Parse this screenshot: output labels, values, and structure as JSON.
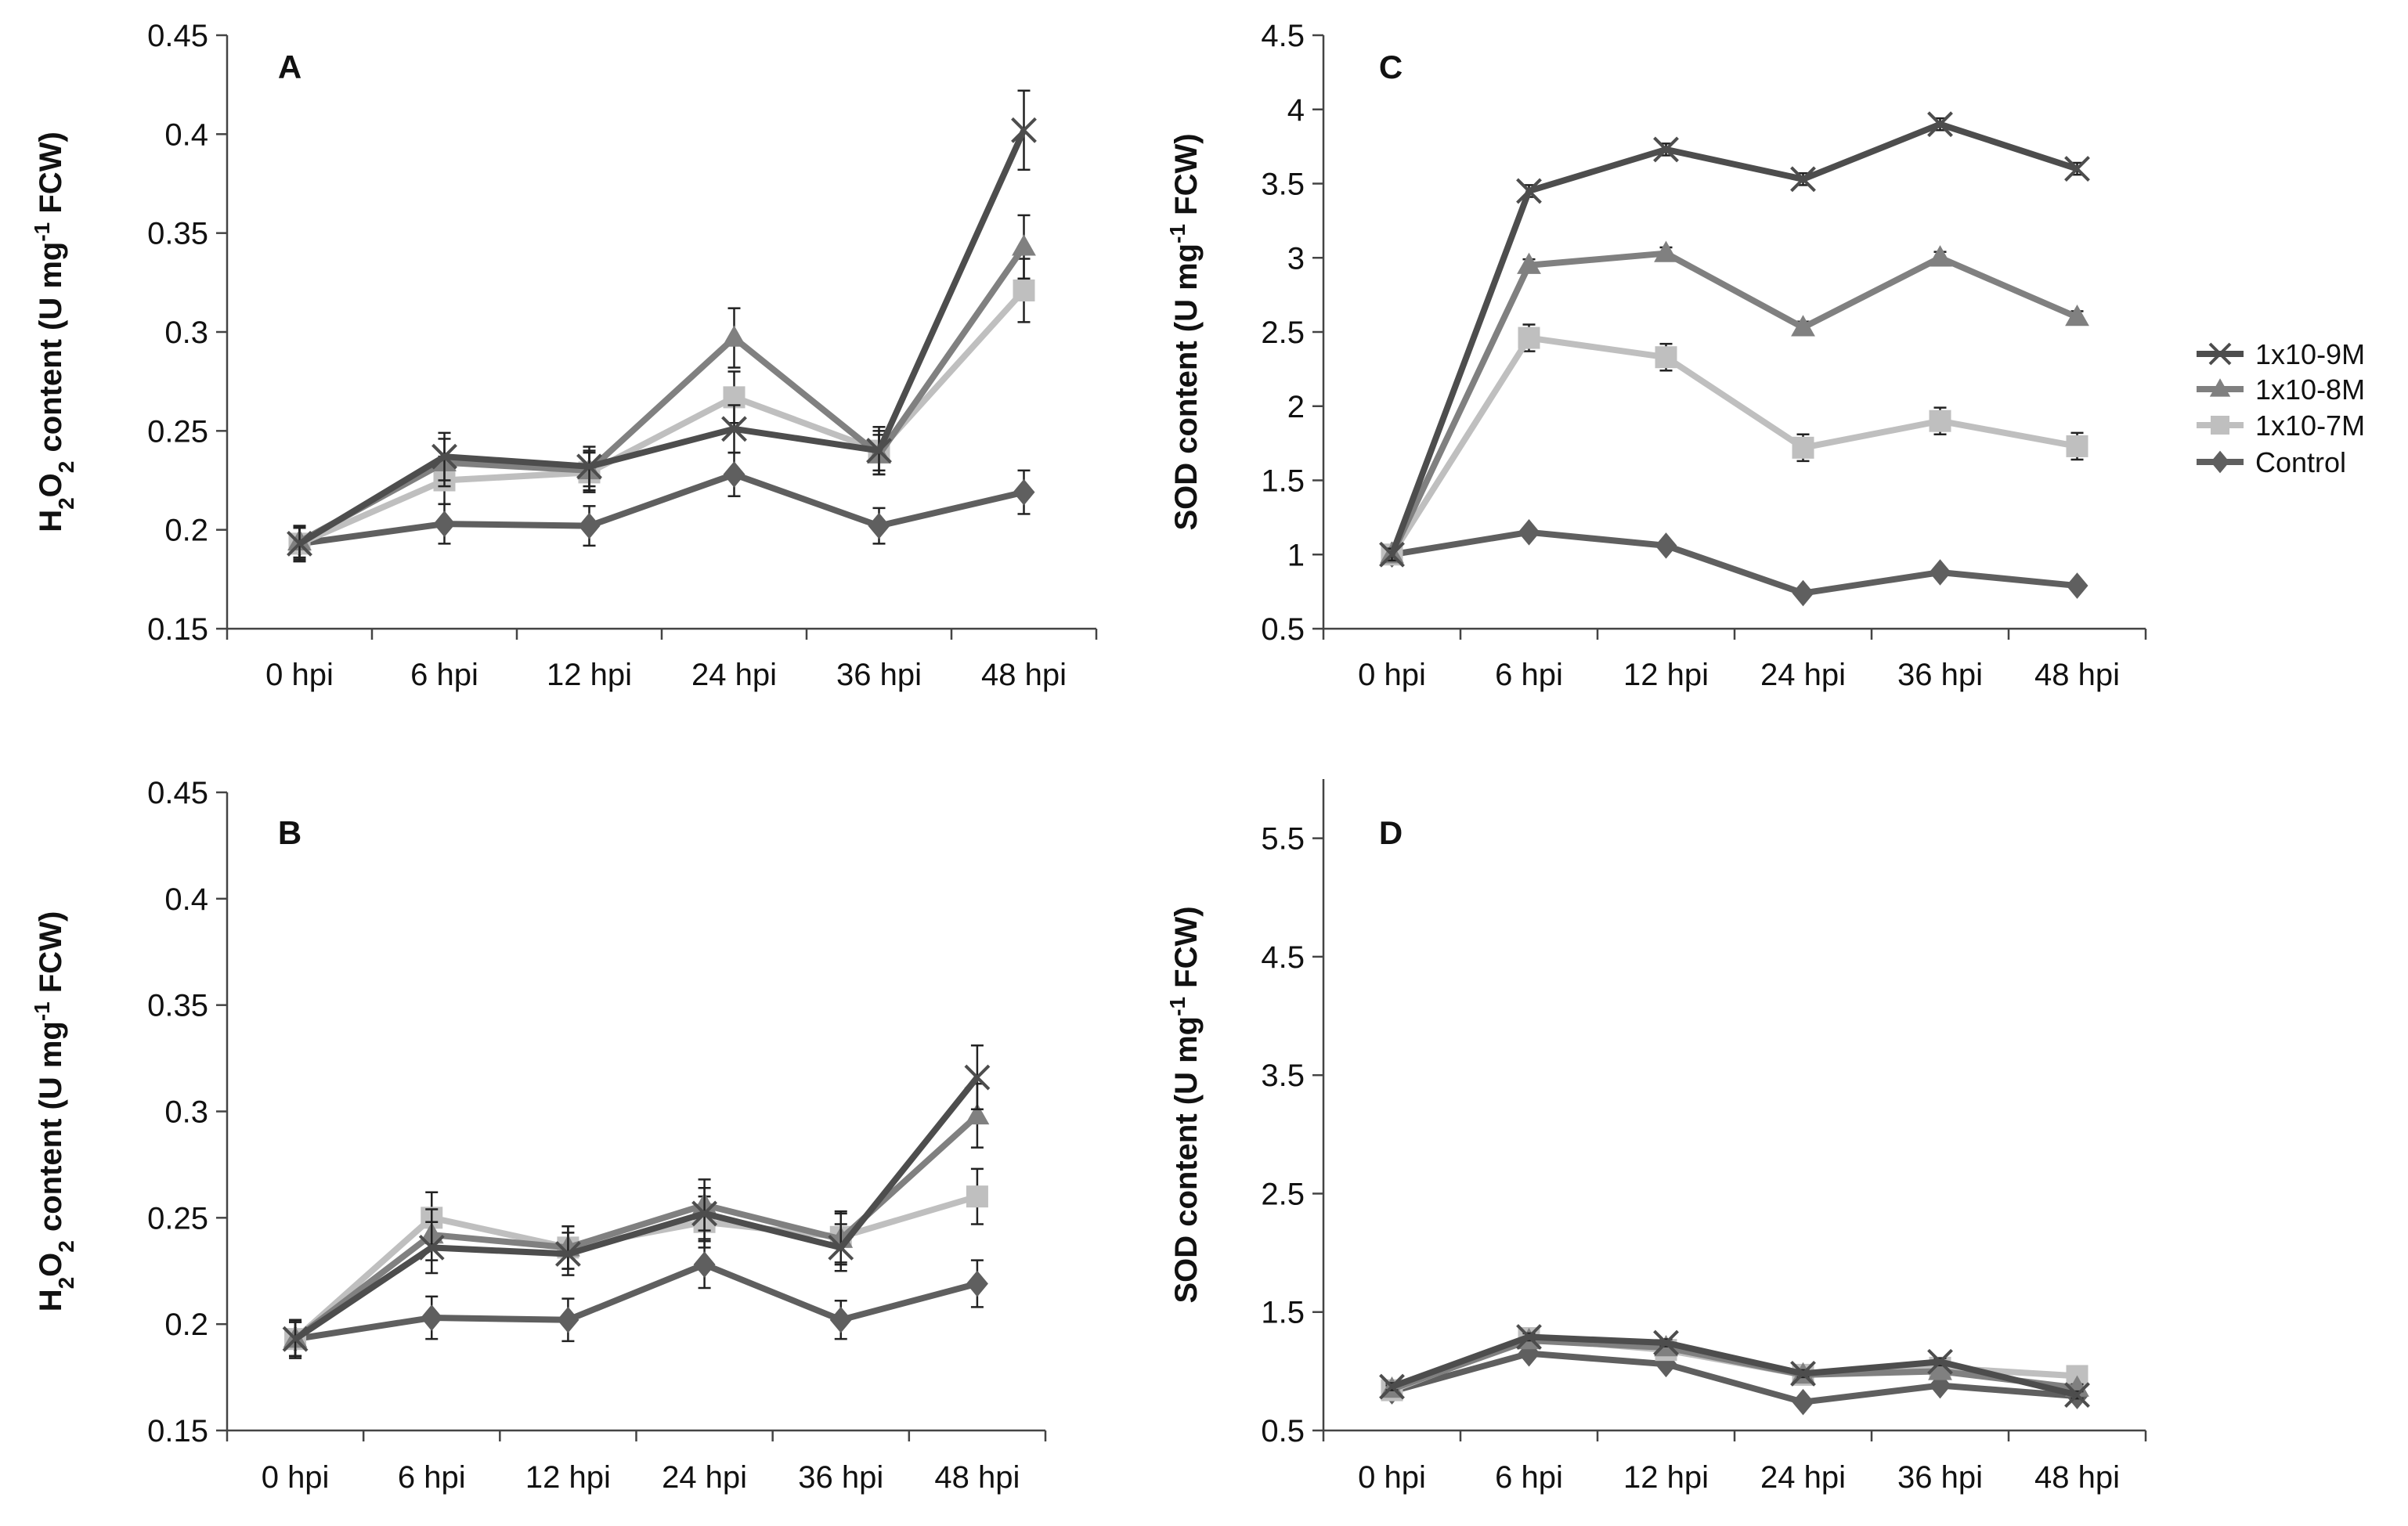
{
  "legend": {
    "items": [
      {
        "name": "1x10-9M",
        "marker": "x",
        "color": "#4d4d4d"
      },
      {
        "name": "1x10-8M",
        "marker": "triangle",
        "color": "#808080"
      },
      {
        "name": "1x10-7M",
        "marker": "square",
        "color": "#bfbfbf"
      },
      {
        "name": "Control",
        "marker": "diamond",
        "color": "#5f5f5f"
      }
    ]
  },
  "chart_data": [
    {
      "panel": "A",
      "type": "line",
      "ylabel": {
        "main": "H",
        "sub1": "2",
        "mid": "O",
        "sub2": "2",
        "rest": " content (U mg",
        "sup": "-1",
        "end": " FCW)"
      },
      "ylim": [
        0.15,
        0.45
      ],
      "yticks": [
        0.15,
        0.2,
        0.25,
        0.3,
        0.35,
        0.4,
        0.45
      ],
      "ytick_labels": [
        "0.15",
        "0.2",
        "0.25",
        "0.3",
        "0.35",
        "0.4",
        "0.45"
      ],
      "categories": [
        "0 hpi",
        "6 hpi",
        "12 hpi",
        "24 hpi",
        "36 hpi",
        "48 hpi"
      ],
      "series": [
        {
          "name": "1x10-9M",
          "values": [
            0.193,
            0.237,
            0.232,
            0.251,
            0.24,
            0.402
          ],
          "errors": [
            0.008,
            0.012,
            0.01,
            0.012,
            0.012,
            0.02
          ]
        },
        {
          "name": "1x10-8M",
          "values": [
            0.194,
            0.234,
            0.23,
            0.297,
            0.238,
            0.343
          ],
          "errors": [
            0.008,
            0.012,
            0.01,
            0.015,
            0.01,
            0.016
          ]
        },
        {
          "name": "1x10-7M",
          "values": [
            0.193,
            0.225,
            0.229,
            0.267,
            0.24,
            0.321
          ],
          "errors": [
            0.008,
            0.012,
            0.01,
            0.013,
            0.01,
            0.016
          ]
        },
        {
          "name": "Control",
          "values": [
            0.193,
            0.203,
            0.202,
            0.228,
            0.202,
            0.219
          ],
          "errors": [
            0.009,
            0.01,
            0.01,
            0.011,
            0.009,
            0.011
          ]
        }
      ]
    },
    {
      "panel": "B",
      "type": "line",
      "ylabel": {
        "main": "H",
        "sub1": "2",
        "mid": "O",
        "sub2": "2",
        "rest": " content (U mg",
        "sup": "-1",
        "end": " FCW)"
      },
      "ylim": [
        0.15,
        0.45
      ],
      "yticks": [
        0.15,
        0.2,
        0.25,
        0.3,
        0.35,
        0.4,
        0.45
      ],
      "ytick_labels": [
        "0.15",
        "0.2",
        "0.25",
        "0.3",
        "0.35",
        "0.4",
        "0.45"
      ],
      "categories": [
        "0 hpi",
        "6 hpi",
        "12 hpi",
        "24 hpi",
        "36 hpi",
        "48 hpi"
      ],
      "series": [
        {
          "name": "1x10-9M",
          "values": [
            0.193,
            0.236,
            0.233,
            0.252,
            0.236,
            0.316
          ],
          "errors": [
            0.008,
            0.012,
            0.01,
            0.012,
            0.011,
            0.015
          ]
        },
        {
          "name": "1x10-8M",
          "values": [
            0.193,
            0.242,
            0.236,
            0.256,
            0.24,
            0.298
          ],
          "errors": [
            0.008,
            0.012,
            0.01,
            0.012,
            0.012,
            0.015
          ]
        },
        {
          "name": "1x10-7M",
          "values": [
            0.193,
            0.25,
            0.236,
            0.248,
            0.241,
            0.26
          ],
          "errors": [
            0.008,
            0.012,
            0.01,
            0.012,
            0.012,
            0.013
          ]
        },
        {
          "name": "Control",
          "values": [
            0.193,
            0.203,
            0.202,
            0.228,
            0.202,
            0.219
          ],
          "errors": [
            0.009,
            0.01,
            0.01,
            0.011,
            0.009,
            0.011
          ]
        }
      ]
    },
    {
      "panel": "C",
      "type": "line",
      "ylabel": {
        "main": "SOD content (U mg",
        "sup": "-1",
        "end": " FCW)"
      },
      "ylim": [
        0.5,
        4.5
      ],
      "yticks": [
        0.5,
        1,
        1.5,
        2,
        2.5,
        3,
        3.5,
        4,
        4.5
      ],
      "ytick_labels": [
        "0.5",
        "1",
        "1.5",
        "2",
        "2.5",
        "3",
        "3.5",
        "4",
        "4.5"
      ],
      "categories": [
        "0 hpi",
        "6 hpi",
        "12 hpi",
        "24 hpi",
        "36 hpi",
        "48 hpi"
      ],
      "series": [
        {
          "name": "1x10-9M",
          "values": [
            1.0,
            3.45,
            3.73,
            3.53,
            3.9,
            3.6
          ],
          "errors": [
            0.04,
            0.04,
            0.04,
            0.04,
            0.04,
            0.04
          ]
        },
        {
          "name": "1x10-8M",
          "values": [
            1.0,
            2.95,
            3.03,
            2.53,
            3.0,
            2.6
          ],
          "errors": [
            0.04,
            0.04,
            0.04,
            0.04,
            0.04,
            0.04
          ]
        },
        {
          "name": "1x10-7M",
          "values": [
            1.0,
            2.46,
            2.33,
            1.72,
            1.9,
            1.73
          ],
          "errors": [
            0.04,
            0.09,
            0.09,
            0.09,
            0.09,
            0.09
          ]
        },
        {
          "name": "Control",
          "values": [
            1.0,
            1.15,
            1.06,
            0.74,
            0.88,
            0.79
          ],
          "errors": [
            0.05,
            0.03,
            0.03,
            0.03,
            0.03,
            0.03
          ]
        }
      ]
    },
    {
      "panel": "D",
      "type": "line",
      "ylabel": {
        "main": "SOD content (U mg",
        "sup": "-1",
        "end": " FCW)"
      },
      "ylim": [
        0.5,
        6.0
      ],
      "yticks": [
        0.5,
        1.5,
        2.5,
        3.5,
        4.5,
        5.5
      ],
      "ytick_labels": [
        "0.5",
        "1.5",
        "2.5",
        "3.5",
        "4.5",
        "5.5"
      ],
      "categories": [
        "0 hpi",
        "6 hpi",
        "12 hpi",
        "24 hpi",
        "36 hpi",
        "48 hpi"
      ],
      "series": [
        {
          "name": "1x10-9M",
          "values": [
            0.87,
            1.29,
            1.24,
            0.98,
            1.08,
            0.8
          ],
          "errors": [
            0.03,
            0.03,
            0.03,
            0.03,
            0.03,
            0.03
          ]
        },
        {
          "name": "1x10-8M",
          "values": [
            0.85,
            1.26,
            1.2,
            0.97,
            1.0,
            0.86
          ],
          "errors": [
            0.03,
            0.03,
            0.03,
            0.03,
            0.03,
            0.03
          ]
        },
        {
          "name": "1x10-7M",
          "values": [
            0.84,
            1.28,
            1.18,
            0.97,
            1.03,
            0.96
          ],
          "errors": [
            0.03,
            0.03,
            0.03,
            0.03,
            0.03,
            0.03
          ]
        },
        {
          "name": "Control",
          "values": [
            0.83,
            1.15,
            1.06,
            0.74,
            0.88,
            0.79
          ],
          "errors": [
            0.03,
            0.03,
            0.03,
            0.03,
            0.03,
            0.03
          ]
        }
      ]
    }
  ]
}
